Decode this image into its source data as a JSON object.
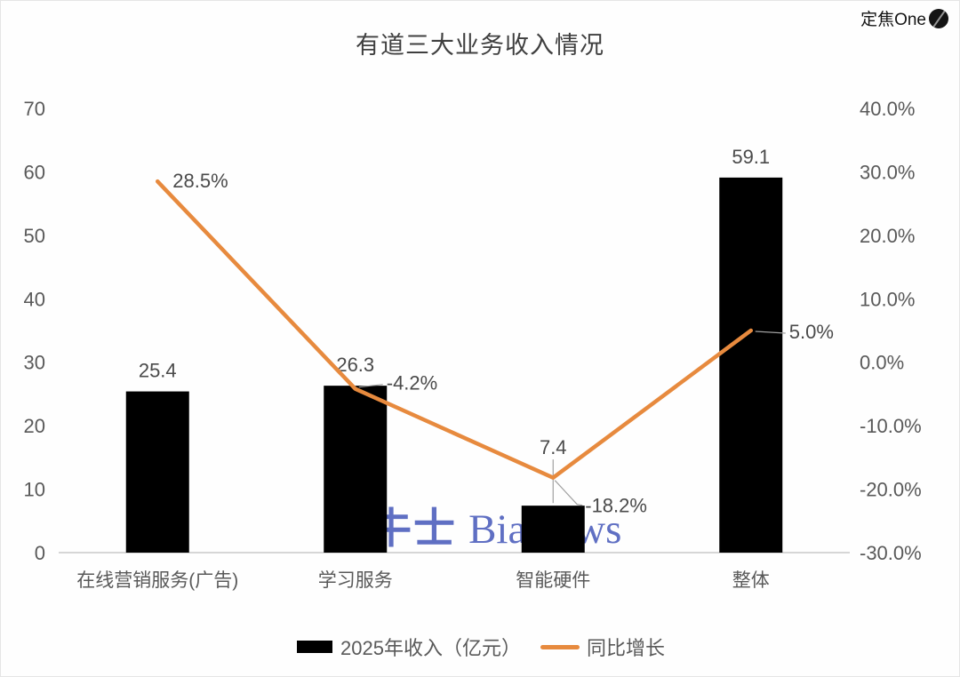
{
  "title": "有道三大业务收入情况",
  "brand": {
    "name": "定焦One"
  },
  "watermark": {
    "text_cn": "鞭牛士",
    "text_en": "BiaNews",
    "color": "#5263BE"
  },
  "chart_data": {
    "type": "bar+line combo",
    "title": "有道三大业务收入情况",
    "categories": [
      "在线营销服务(广告)",
      "学习服务",
      "智能硬件",
      "整体"
    ],
    "series": [
      {
        "name": "2025年收入（亿元）",
        "type": "bar",
        "axis": "left",
        "color": "#000000",
        "values": [
          25.4,
          26.3,
          7.4,
          59.1
        ],
        "labels": [
          "25.4",
          "26.3",
          "7.4",
          "59.1"
        ]
      },
      {
        "name": "同比增长",
        "type": "line",
        "axis": "right",
        "color": "#E78A3E",
        "values": [
          28.5,
          -4.2,
          -18.2,
          5.0
        ],
        "labels": [
          "28.5%",
          "-4.2%",
          "-18.2%",
          "5.0%"
        ]
      }
    ],
    "left_axis": {
      "min": 0,
      "max": 70,
      "step": 10,
      "ticks": [
        "70",
        "60",
        "50",
        "40",
        "30",
        "20",
        "10",
        "0"
      ]
    },
    "right_axis": {
      "min": -30,
      "max": 40,
      "step": 10,
      "ticks": [
        "40.0%",
        "30.0%",
        "20.0%",
        "10.0%",
        "0.0%",
        "-10.0%",
        "-20.0%",
        "-30.0%"
      ]
    },
    "grid": false,
    "legend_position": "bottom"
  },
  "legend": {
    "items": [
      {
        "label": "2025年收入（亿元）",
        "swatch": "bar",
        "color": "#000000"
      },
      {
        "label": "同比增长",
        "swatch": "line",
        "color": "#E78A3E"
      }
    ]
  },
  "colors": {
    "bar": "#000000",
    "line": "#E78A3E",
    "tick_label": "#595959",
    "data_label": "#4a4a4a",
    "axis_line": "#d6d6d6",
    "leader_line": "#a0a0a0",
    "title": "#3f3f3f"
  }
}
